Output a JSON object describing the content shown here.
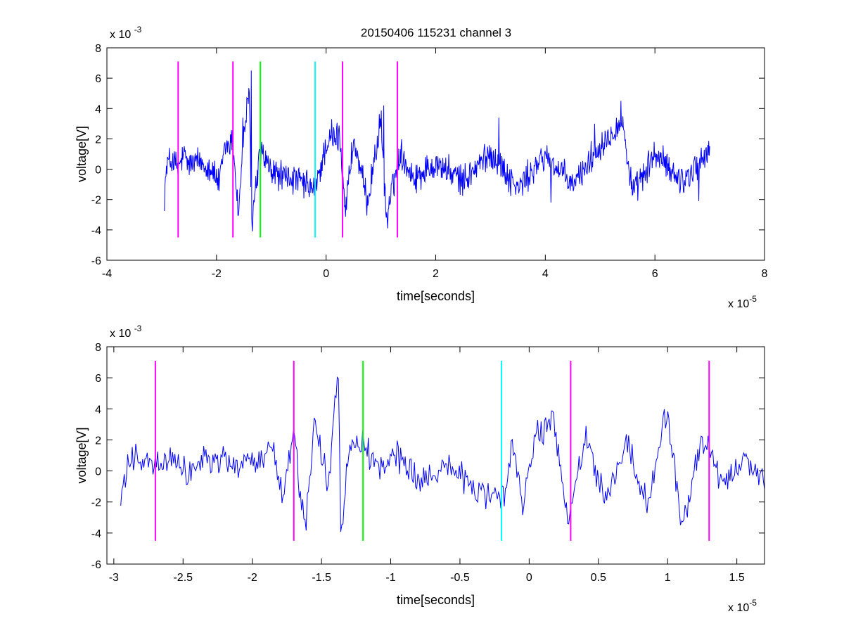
{
  "figure_title": "20150406 115231 channel 3",
  "colors": {
    "signal": "#0000ff",
    "marker_magenta": "#ff00ff",
    "marker_green": "#00ff00",
    "marker_cyan": "#00ffff",
    "axes": "#000000",
    "background": "#ffffff"
  },
  "chart_data": [
    {
      "type": "line",
      "title": "20150406 115231 channel 3",
      "xlabel": "time[seconds]",
      "ylabel": "voltage[V]",
      "x_exponent_label": "x 10",
      "x_exponent": "-5",
      "y_exponent_label": "x 10",
      "y_exponent": "-3",
      "xlim": [
        -4e-05,
        8e-05
      ],
      "ylim": [
        -0.006,
        0.008
      ],
      "xticks": [
        -4e-05,
        -2e-05,
        0,
        2e-05,
        4e-05,
        6e-05,
        8e-05
      ],
      "xtick_labels": [
        "-4",
        "-2",
        "0",
        "2",
        "4",
        "6",
        "8"
      ],
      "yticks": [
        -0.006,
        -0.004,
        -0.002,
        0,
        0.002,
        0.004,
        0.006,
        0.008
      ],
      "ytick_labels": [
        "-6",
        "-4",
        "-2",
        "0",
        "2",
        "4",
        "6",
        "8"
      ],
      "grid": false,
      "signal": {
        "x_start": -2.95e-05,
        "x_end": 7e-05,
        "anchors": [
          [
            -2.95e-05,
            -0.0016
          ],
          [
            -2.9e-05,
            0.0004
          ],
          [
            -2.8e-05,
            0.0006
          ],
          [
            -2.7e-05,
            0.0
          ],
          [
            -2.6e-05,
            0.0009
          ],
          [
            -2.5e-05,
            0.0003
          ],
          [
            -2.3e-05,
            0.0005
          ],
          [
            -2.1e-05,
            0.0001
          ],
          [
            -1.95e-05,
            -0.001
          ],
          [
            -1.85e-05,
            0.0014
          ],
          [
            -1.7e-05,
            0.0019
          ],
          [
            -1.6e-05,
            -0.003
          ],
          [
            -1.5e-05,
            0.0025
          ],
          [
            -1.4e-05,
            0.0048
          ],
          [
            -1.36e-05,
            -0.0035
          ],
          [
            -1.2e-05,
            0.0012
          ],
          [
            -1e-05,
            -0.0002
          ],
          [
            -5e-06,
            -0.0008
          ],
          [
            -2e-06,
            -0.0014
          ],
          [
            0.0,
            0.0016
          ],
          [
            2.5e-06,
            0.0022
          ],
          [
            3.5e-06,
            -0.0026
          ],
          [
            5e-06,
            0.0019
          ],
          [
            7.5e-06,
            -0.0022
          ],
          [
            1e-05,
            0.0032
          ],
          [
            1.1e-05,
            -0.0032
          ],
          [
            1.35e-05,
            0.0012
          ],
          [
            1.6e-05,
            -0.0006
          ],
          [
            2e-05,
            0.0004
          ],
          [
            2.5e-05,
            -0.0008
          ],
          [
            3e-05,
            0.0011
          ],
          [
            3.5e-05,
            -0.0013
          ],
          [
            4e-05,
            0.0009
          ],
          [
            4.5e-05,
            -0.0011
          ],
          [
            5e-05,
            0.0016
          ],
          [
            5.4e-05,
            0.0032
          ],
          [
            5.6e-05,
            -0.0017
          ],
          [
            6e-05,
            0.001
          ],
          [
            6.5e-05,
            -0.0008
          ],
          [
            7e-05,
            0.0012
          ]
        ],
        "peaks": [
          [
            -1.52e-05,
            0.0034
          ],
          [
            -1.37e-05,
            0.0065
          ],
          [
            -1.35e-05,
            -0.0041
          ],
          [
            -1.18e-05,
            0.0018
          ],
          [
            1e-06,
            0.0033
          ],
          [
            3e-06,
            -0.0035
          ],
          [
            1.05e-05,
            0.0042
          ],
          [
            1.12e-05,
            -0.0039
          ],
          [
            3.15e-05,
            0.0034
          ],
          [
            4.1e-05,
            -0.0022
          ],
          [
            4.9e-05,
            0.003
          ],
          [
            5.38e-05,
            0.0045
          ],
          [
            6.8e-05,
            -0.0021
          ]
        ]
      },
      "markers": [
        {
          "x": -2.7e-05,
          "color": "#ff00ff"
        },
        {
          "x": -1.7e-05,
          "color": "#ff00ff"
        },
        {
          "x": -1.2e-05,
          "color": "#00ff00"
        },
        {
          "x": -2e-06,
          "color": "#00ffff"
        },
        {
          "x": 3e-06,
          "color": "#ff00ff"
        },
        {
          "x": 1.3e-05,
          "color": "#ff00ff"
        }
      ],
      "marker_range": [
        -0.0045,
        0.0071
      ]
    },
    {
      "type": "line",
      "title": "",
      "xlabel": "time[seconds]",
      "ylabel": "voltage[V]",
      "x_exponent_label": "x 10",
      "x_exponent": "-5",
      "y_exponent_label": "x 10",
      "y_exponent": "-3",
      "xlim": [
        -3.05e-05,
        1.7e-05
      ],
      "ylim": [
        -0.006,
        0.008
      ],
      "xticks": [
        -3e-05,
        -2.5e-05,
        -2e-05,
        -1.5e-05,
        -1e-05,
        -5e-06,
        0,
        5e-06,
        1e-05,
        1.5e-05
      ],
      "xtick_labels": [
        "-3",
        "-2.5",
        "-2",
        "-1.5",
        "-1",
        "-0.5",
        "0",
        "0.5",
        "1",
        "1.5"
      ],
      "yticks": [
        -0.006,
        -0.004,
        -0.002,
        0,
        0.002,
        0.004,
        0.006,
        0.008
      ],
      "ytick_labels": [
        "-6",
        "-4",
        "-2",
        "0",
        "2",
        "4",
        "6",
        "8"
      ],
      "grid": false,
      "signal": {
        "x_start": -2.95e-05,
        "x_end": 1.7e-05,
        "anchors": [
          [
            -2.95e-05,
            -0.0016
          ],
          [
            -2.9e-05,
            0.0004
          ],
          [
            -2.85e-05,
            0.0012
          ],
          [
            -2.75e-05,
            0.0004
          ],
          [
            -2.7e-05,
            0.0
          ],
          [
            -2.6e-05,
            0.0009
          ],
          [
            -2.5e-05,
            -0.0001
          ],
          [
            -2.35e-05,
            0.0006
          ],
          [
            -2.2e-05,
            0.0008
          ],
          [
            -2.1e-05,
            0.0002
          ],
          [
            -1.95e-05,
            0.0007
          ],
          [
            -1.85e-05,
            0.0015
          ],
          [
            -1.78e-05,
            -0.0018
          ],
          [
            -1.7e-05,
            0.0024
          ],
          [
            -1.62e-05,
            -0.0038
          ],
          [
            -1.55e-05,
            0.0034
          ],
          [
            -1.45e-05,
            -0.0012
          ],
          [
            -1.38e-05,
            0.0065
          ],
          [
            -1.36e-05,
            -0.0039
          ],
          [
            -1.3e-05,
            0.0016
          ],
          [
            -1.2e-05,
            0.0018
          ],
          [
            -1.1e-05,
            0.0004
          ],
          [
            -9.5e-06,
            0.001
          ],
          [
            -8e-06,
            -0.0006
          ],
          [
            -6e-06,
            0.0007
          ],
          [
            -4e-06,
            -0.0012
          ],
          [
            -2e-06,
            -0.0021
          ],
          [
            -1.2e-06,
            0.0015
          ],
          [
            -5e-07,
            -0.0022
          ],
          [
            5e-07,
            0.0024
          ],
          [
            1.8e-06,
            0.0033
          ],
          [
            2.8e-06,
            -0.0034
          ],
          [
            4e-06,
            0.0021
          ],
          [
            5.5e-06,
            -0.0018
          ],
          [
            7e-06,
            0.0019
          ],
          [
            8.5e-06,
            -0.0022
          ],
          [
            1e-05,
            0.0041
          ],
          [
            1.1e-05,
            -0.0038
          ],
          [
            1.25e-05,
            0.0022
          ],
          [
            1.4e-05,
            -0.0008
          ],
          [
            1.55e-05,
            0.0009
          ],
          [
            1.7e-05,
            -0.0007
          ]
        ],
        "peaks": []
      },
      "markers": [
        {
          "x": -2.7e-05,
          "color": "#ff00ff"
        },
        {
          "x": -1.7e-05,
          "color": "#ff00ff"
        },
        {
          "x": -1.2e-05,
          "color": "#00ff00"
        },
        {
          "x": -2e-06,
          "color": "#00ffff"
        },
        {
          "x": 3e-06,
          "color": "#ff00ff"
        },
        {
          "x": 1.3e-05,
          "color": "#ff00ff"
        }
      ],
      "marker_range": [
        -0.0045,
        0.0071
      ]
    }
  ]
}
